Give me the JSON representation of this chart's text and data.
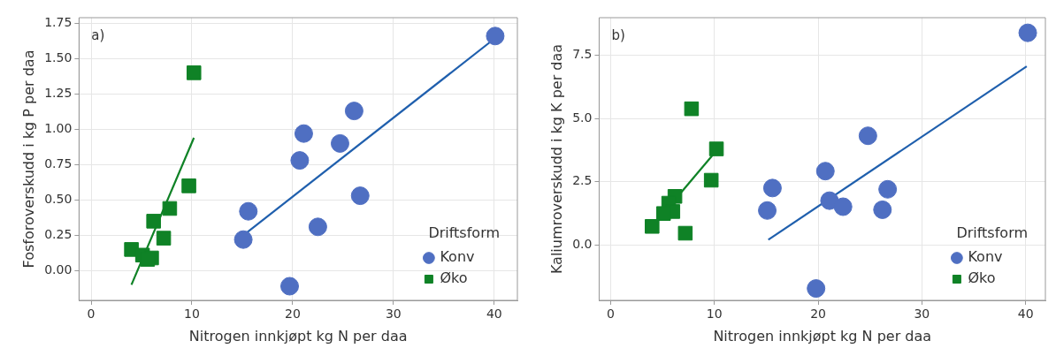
{
  "chart_data": [
    {
      "type": "scatter",
      "xlabel": "Nitrogen innkjøpt kg N per daa",
      "ylabel": "Fosforoverskudd i kg P per daa",
      "annotations": [
        "a)"
      ],
      "legend_title": "Driftsform",
      "legend": "bottom right",
      "grid": true,
      "xlim": [
        -1.2,
        42.3
      ],
      "xticks": [
        0,
        10,
        20,
        30,
        40
      ],
      "ylim": [
        -0.21,
        1.79
      ],
      "yticks": [
        {
          "value": 0,
          "label": "0.00"
        },
        {
          "value": 0.25,
          "label": "0.25"
        },
        {
          "value": 0.5,
          "label": "0.50"
        },
        {
          "value": 0.75,
          "label": "0.75"
        },
        {
          "value": 1,
          "label": "1.00"
        },
        {
          "value": 1.25,
          "label": "1.25"
        },
        {
          "value": 1.5,
          "label": "1.50"
        },
        {
          "value": 1.75,
          "label": "1.75"
        }
      ],
      "series": [
        {
          "name": "Konv",
          "color": "#4f6fc2",
          "marker": "circle",
          "x": [
            40.1,
            26.1,
            21.1,
            24.7,
            20.7,
            26.7,
            15.6,
            22.5,
            15.1,
            19.7
          ],
          "values": [
            1.66,
            1.13,
            0.97,
            0.9,
            0.78,
            0.53,
            0.42,
            0.31,
            0.22,
            -0.11
          ]
        },
        {
          "name": "Øko",
          "color": "#0f8226",
          "marker": "square",
          "x": [
            10.2,
            9.7,
            7.8,
            6.2,
            7.2,
            4.0,
            5.1,
            6.0,
            5.6
          ],
          "values": [
            1.4,
            0.6,
            0.44,
            0.35,
            0.23,
            0.15,
            0.11,
            0.09,
            0.08
          ]
        },
        {
          "type": "line",
          "color": "#1f5fad",
          "marker": "none",
          "x": [
            15.1,
            40.0
          ],
          "values": [
            0.25,
            1.64
          ]
        },
        {
          "type": "line",
          "color": "#0f8226",
          "marker": "none",
          "x": [
            4.0,
            10.2
          ],
          "values": [
            -0.1,
            0.94
          ]
        }
      ]
    },
    {
      "type": "scatter",
      "xlabel": "Nitrogen innkjøpt kg N per daa",
      "ylabel": "Kaliumroverskudd i kg K per daa",
      "annotations": [
        "b)"
      ],
      "legend_title": "Driftsform",
      "legend": "bottom right",
      "grid": true,
      "xlim": [
        -1.1,
        41.9
      ],
      "xticks": [
        0,
        10,
        20,
        30,
        40
      ],
      "ylim": [
        -2.2,
        9.0
      ],
      "yticks": [
        {
          "value": 0,
          "label": "0.0"
        },
        {
          "value": 2.5,
          "label": "2.5"
        },
        {
          "value": 5,
          "label": "5.0"
        },
        {
          "value": 7.5,
          "label": "7.5"
        }
      ],
      "series": [
        {
          "name": "Konv",
          "color": "#4f6fc2",
          "marker": "circle",
          "x": [
            40.2,
            24.8,
            20.7,
            15.6,
            26.7,
            21.1,
            22.4,
            15.1,
            26.2,
            19.8
          ],
          "values": [
            8.4,
            4.32,
            2.92,
            2.25,
            2.2,
            1.75,
            1.51,
            1.36,
            1.39,
            -1.73
          ]
        },
        {
          "name": "Øko",
          "color": "#0f8226",
          "marker": "square",
          "x": [
            7.8,
            10.2,
            9.7,
            6.2,
            5.6,
            6.0,
            5.1,
            4.0,
            7.2
          ],
          "values": [
            5.39,
            3.8,
            2.56,
            1.92,
            1.65,
            1.32,
            1.24,
            0.73,
            0.46
          ]
        },
        {
          "type": "line",
          "color": "#1f5fad",
          "marker": "none",
          "x": [
            15.2,
            40.1
          ],
          "values": [
            0.2,
            7.07
          ]
        },
        {
          "type": "line",
          "color": "#0f8226",
          "marker": "none",
          "x": [
            4.0,
            10.2
          ],
          "values": [
            0.71,
            3.73
          ]
        }
      ]
    }
  ]
}
